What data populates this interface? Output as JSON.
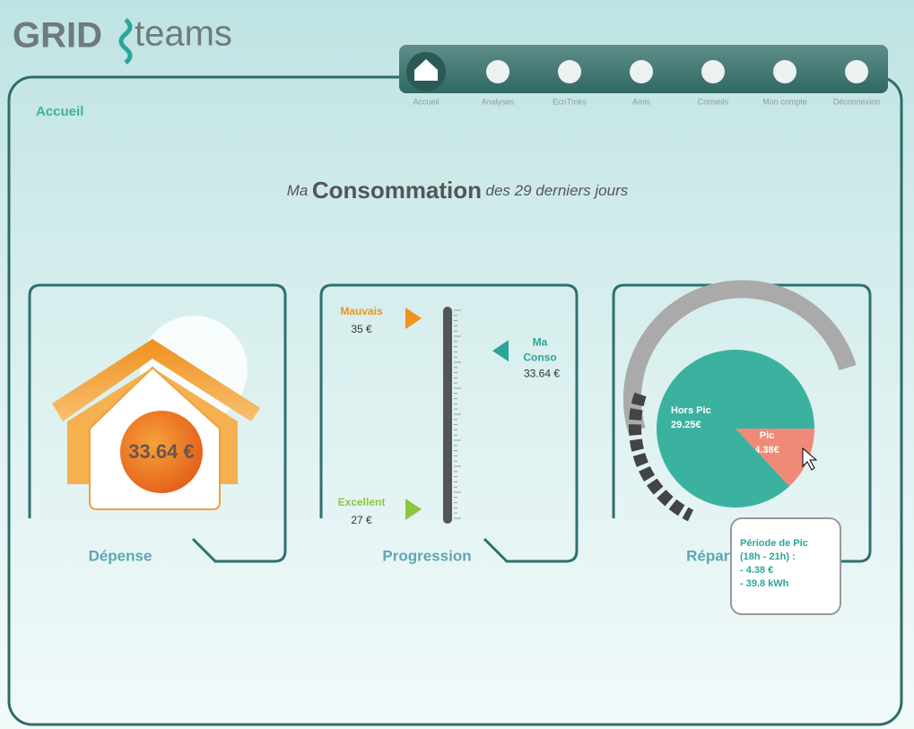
{
  "logo": {
    "left": "GRID",
    "right": "teams"
  },
  "nav": [
    "Accueil",
    "Analyses",
    "EcoTroks",
    "Amis",
    "Conseils",
    "Mon compte",
    "Déconnexion"
  ],
  "breadcrumb": "Accueil",
  "headline": {
    "prefix": "Ma",
    "main": "Consommation",
    "suffix": "des 29 derniers jours"
  },
  "depense": {
    "amount": "33.64 €",
    "title": "Dépense"
  },
  "progression": {
    "title": "Progression",
    "scale": [
      {
        "label": "Mauvais",
        "value": 35,
        "value_label": "35 €"
      },
      {
        "label": "Excellent",
        "value": 27,
        "value_label": "27 €"
      }
    ],
    "current": {
      "label_1": "Ma",
      "label_2": "Conso",
      "value": 33.64,
      "value_label": "33.64 €"
    }
  },
  "repartition": {
    "title": "Répartition",
    "slices": [
      {
        "label": "Pic",
        "value": 4.38,
        "value_label": "4.38€",
        "color": "#f08a78"
      },
      {
        "label": "Hors Pic",
        "value": 29.25,
        "value_label": "29.25€",
        "color": "#3bb2a0"
      }
    ],
    "tooltip": [
      "Période de Pic",
      "(18h - 21h) :",
      "- 4.38 €",
      "- 39.8 kWh"
    ]
  }
}
